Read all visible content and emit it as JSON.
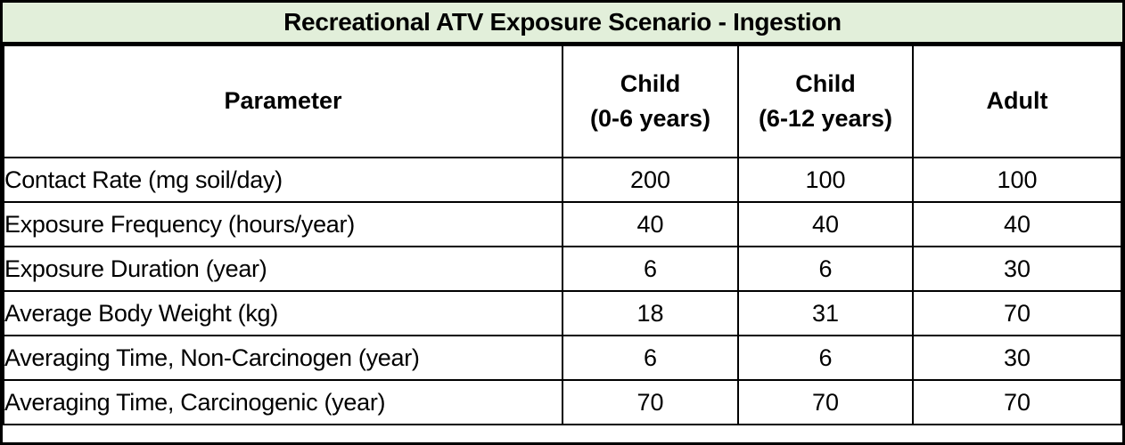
{
  "title": "Recreational ATV Exposure Scenario - Ingestion",
  "colors": {
    "title_bg": "#e2efda",
    "border": "#000000",
    "text": "#000000"
  },
  "table": {
    "columns": [
      {
        "label": "Parameter",
        "sublabel": ""
      },
      {
        "label": "Child",
        "sublabel": "(0-6 years)"
      },
      {
        "label": "Child",
        "sublabel": "(6-12 years)"
      },
      {
        "label": "Adult",
        "sublabel": ""
      }
    ],
    "rows": [
      {
        "parameter": "Contact Rate (mg soil/day)",
        "values": [
          "200",
          "100",
          "100"
        ]
      },
      {
        "parameter": "Exposure Frequency (hours/year)",
        "values": [
          "40",
          "40",
          "40"
        ]
      },
      {
        "parameter": "Exposure Duration (year)",
        "values": [
          "6",
          "6",
          "30"
        ]
      },
      {
        "parameter": "Average Body Weight (kg)",
        "values": [
          "18",
          "31",
          "70"
        ]
      },
      {
        "parameter": "Averaging Time, Non-Carcinogen (year)",
        "values": [
          "6",
          "6",
          "30"
        ]
      },
      {
        "parameter": "Averaging Time, Carcinogenic (year)",
        "values": [
          "70",
          "70",
          "70"
        ]
      }
    ]
  }
}
